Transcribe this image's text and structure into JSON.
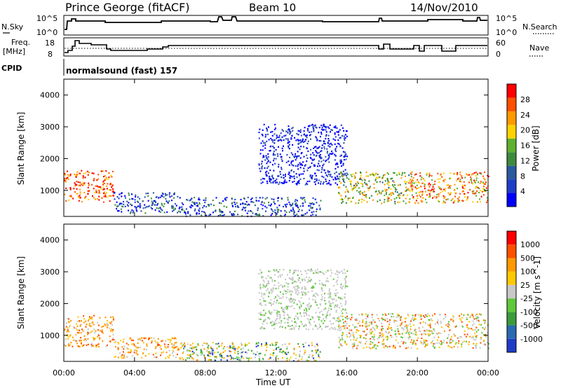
{
  "header": {
    "station": "Prince George (fitACF)",
    "beam": "Beam 10",
    "date": "14/Nov/2010"
  },
  "top_panels": {
    "nsky_label": "N.Sky",
    "nsearch_label": "N.Search",
    "noise_ticks": [
      "10^5",
      "10^0"
    ],
    "freq_label_1": "Freq.",
    "freq_label_2": "[MHz]",
    "freq_ticks": [
      "18",
      "8"
    ],
    "nave_label": "Nave",
    "nave_ticks": [
      "60",
      "0"
    ],
    "cpid_label": "CPID",
    "cpid_text": "normalsound (fast) 157"
  },
  "x_axis": {
    "label": "Time UT",
    "ticks": [
      "00:00",
      "04:00",
      "08:00",
      "12:00",
      "16:00",
      "20:00",
      "00:00"
    ]
  },
  "chart_data": [
    {
      "type": "heatmap",
      "panel": "power",
      "ylabel": "Slant Range [km]",
      "yticks": [
        1000,
        2000,
        3000,
        4000
      ],
      "ylim": [
        180,
        4500
      ],
      "xlim_hours": [
        0,
        24
      ],
      "colorbar_label": "Power [dB]",
      "colorbar_ticks": [
        "28",
        "24",
        "20",
        "16",
        "12",
        "8",
        "4"
      ],
      "colorbar_colors": [
        "#0000ff",
        "#1e3ec8",
        "#2a5aa0",
        "#3c8c3c",
        "#5fb030",
        "#ffd200",
        "#ff9900",
        "#ff5000",
        "#ff0000"
      ],
      "regions": [
        {
          "t": [
            0.0,
            2.8
          ],
          "r": [
            650,
            1650
          ],
          "level": 0.85
        },
        {
          "t": [
            2.8,
            6.5
          ],
          "r": [
            300,
            950
          ],
          "level": 0.2
        },
        {
          "t": [
            6.5,
            14.5
          ],
          "r": [
            200,
            800
          ],
          "level": 0.2
        },
        {
          "t": [
            11.0,
            16.0
          ],
          "r": [
            1200,
            3100
          ],
          "level": 0.05
        },
        {
          "t": [
            15.5,
            19.5
          ],
          "r": [
            600,
            1600
          ],
          "level": 0.55
        },
        {
          "t": [
            19.5,
            24.0
          ],
          "r": [
            600,
            1600
          ],
          "level": 0.7
        }
      ]
    },
    {
      "type": "heatmap",
      "panel": "velocity",
      "ylabel": "Slant Range [km]",
      "yticks": [
        1000,
        2000,
        3000,
        4000
      ],
      "ylim": [
        180,
        4500
      ],
      "xlim_hours": [
        0,
        24
      ],
      "colorbar_label": "Velocity [m s^-1]",
      "colorbar_ticks": [
        "1000",
        "500",
        "100",
        "25",
        "-25",
        "-100",
        "-500",
        "-1000"
      ],
      "colorbar_colors": [
        "#1e3cc8",
        "#2a6ab0",
        "#3c9c3c",
        "#5fc83c",
        "#c8c8c8",
        "#ffc800",
        "#ff9900",
        "#ff5000",
        "#ff0000"
      ],
      "regions": [
        {
          "t": [
            0.0,
            2.8
          ],
          "r": [
            650,
            1650
          ],
          "class": "orange"
        },
        {
          "t": [
            2.8,
            6.5
          ],
          "r": [
            300,
            950
          ],
          "class": "orange"
        },
        {
          "t": [
            6.5,
            14.5
          ],
          "r": [
            200,
            800
          ],
          "class": "mixed"
        },
        {
          "t": [
            11.0,
            16.0
          ],
          "r": [
            1200,
            3100
          ],
          "class": "grey"
        },
        {
          "t": [
            15.5,
            24.0
          ],
          "r": [
            600,
            1700
          ],
          "class": "grey-orange"
        }
      ]
    }
  ]
}
